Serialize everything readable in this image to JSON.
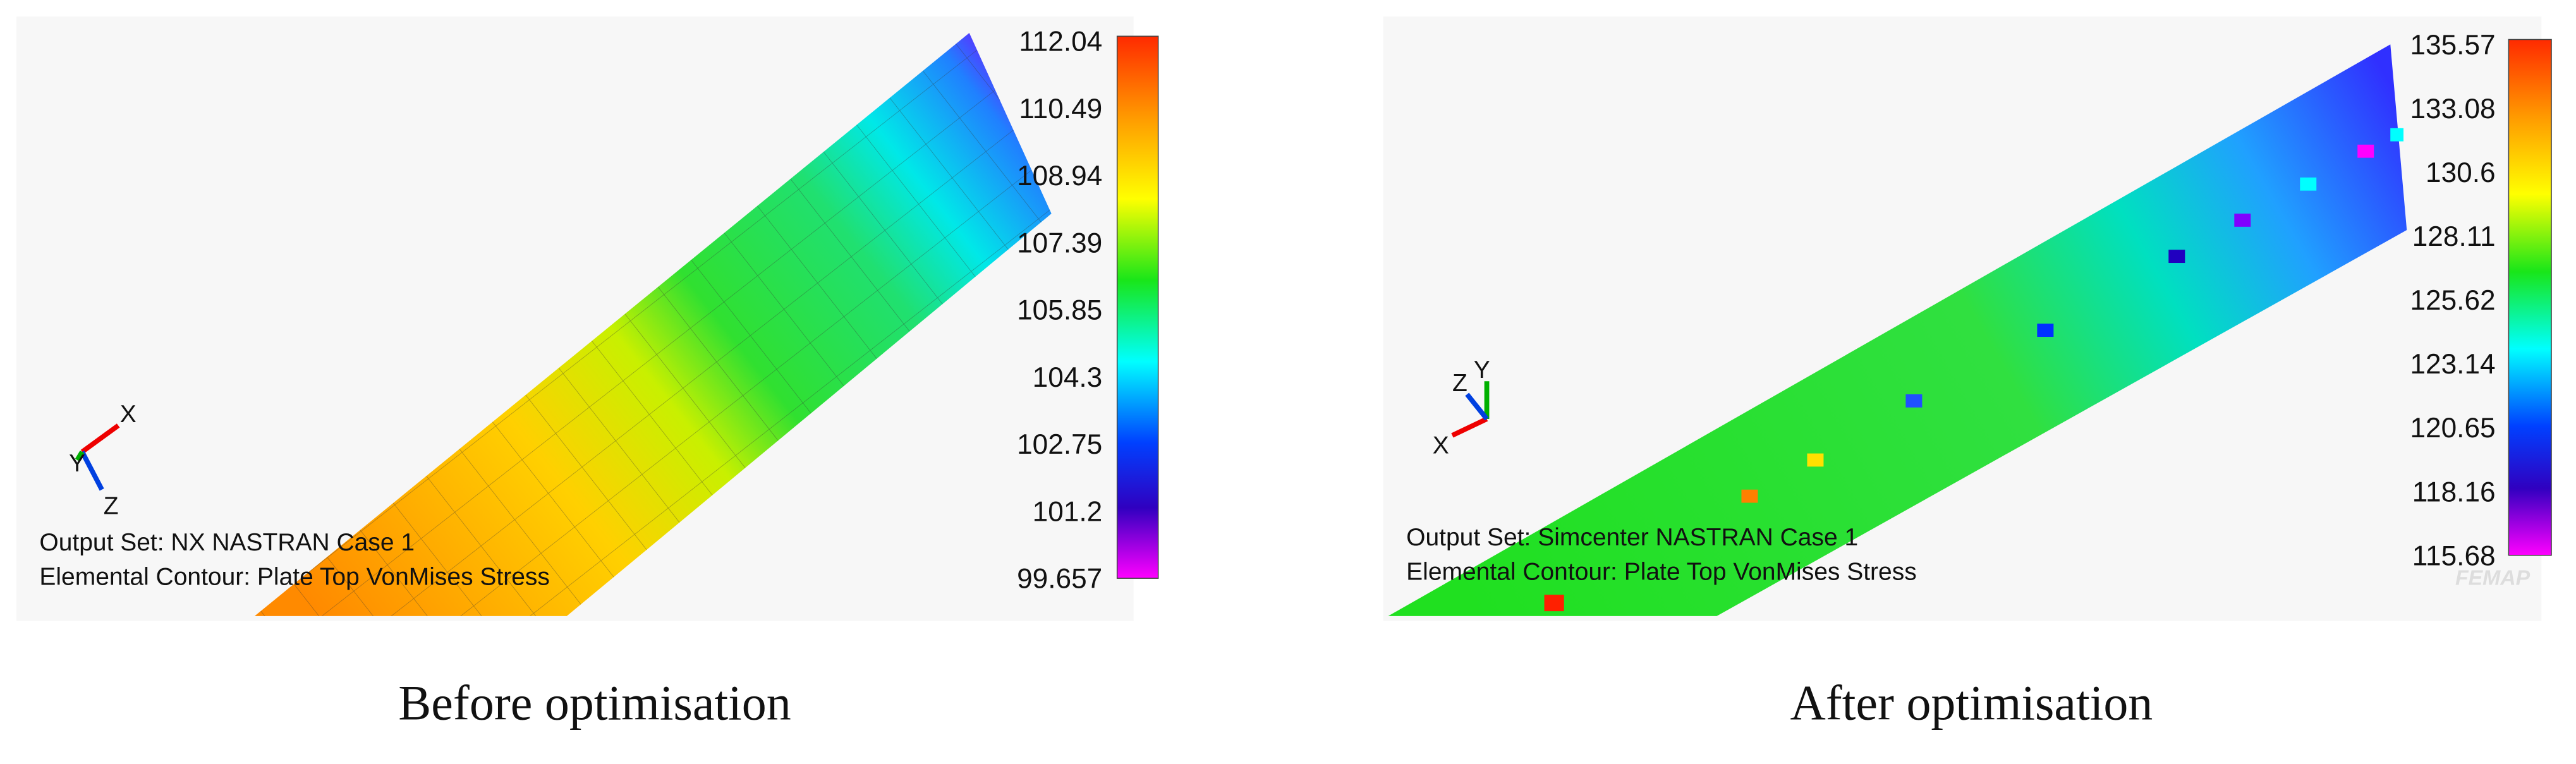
{
  "panels": [
    {
      "legend": [
        "112.04",
        "110.49",
        "108.94",
        "107.39",
        "105.85",
        "104.3",
        "102.75",
        "101.2",
        "99.657"
      ],
      "output_set": "Output Set: NX NASTRAN Case 1",
      "contour": "Elemental Contour: Plate Top VonMises Stress",
      "axes": {
        "x": "X",
        "y": "Y",
        "z": "Z"
      },
      "caption": "Before optimisation"
    },
    {
      "legend": [
        "135.57",
        "133.08",
        "130.6",
        "128.11",
        "125.62",
        "123.14",
        "120.65",
        "118.16",
        "115.68"
      ],
      "output_set": "Output Set: Simcenter NASTRAN Case 1",
      "contour": "Elemental Contour: Plate Top VonMises Stress",
      "axes": {
        "x": "X",
        "y": "Y",
        "z": "Z"
      },
      "watermark": "FEMAP",
      "caption": "After optimisation"
    }
  ]
}
